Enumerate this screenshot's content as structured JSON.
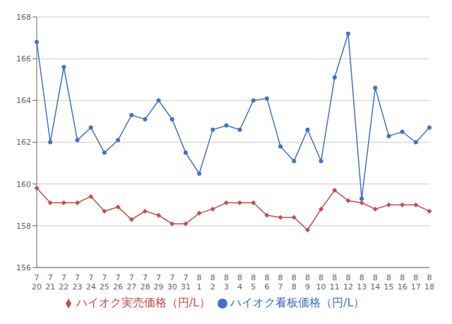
{
  "chart_data": {
    "type": "line",
    "categories": [
      "7\n20",
      "7\n21",
      "7\n22",
      "7\n23",
      "7\n24",
      "7\n25",
      "7\n26",
      "7\n27",
      "7\n28",
      "7\n29",
      "7\n30",
      "7\n31",
      "8\n1",
      "8\n2",
      "8\n3",
      "8\n4",
      "8\n5",
      "8\n6",
      "8\n7",
      "8\n8",
      "8\n9",
      "8\n10",
      "8\n11",
      "8\n12",
      "8\n13",
      "8\n14",
      "8\n15",
      "8\n16",
      "8\n17",
      "8\n18"
    ],
    "series": [
      {
        "name": "ハイオク看板価格（円/L）",
        "color": "#4472C4",
        "marker": "circle",
        "values": [
          166.8,
          162.0,
          165.6,
          162.1,
          162.7,
          161.5,
          162.1,
          163.3,
          163.1,
          164.0,
          163.1,
          161.5,
          160.5,
          162.6,
          162.8,
          162.6,
          164.0,
          164.1,
          161.8,
          161.1,
          162.6,
          161.1,
          165.1,
          167.2,
          159.3,
          164.6,
          162.3,
          162.5,
          162.0,
          162.7
        ]
      },
      {
        "name": "ハイオク実売価格（円/L）",
        "color": "#C0504D",
        "marker": "diamond",
        "values": [
          159.8,
          159.1,
          159.1,
          159.1,
          159.4,
          158.7,
          158.9,
          158.3,
          158.7,
          158.5,
          158.1,
          158.1,
          158.6,
          158.8,
          159.1,
          159.1,
          159.1,
          158.5,
          158.4,
          158.4,
          157.8,
          158.8,
          159.7,
          159.2,
          159.1,
          158.8,
          159.0,
          159.0,
          159.0,
          158.7
        ]
      }
    ],
    "ylim": [
      156,
      168
    ],
    "yticks": [
      156,
      158,
      160,
      162,
      164,
      166,
      168
    ],
    "grid": true,
    "legend": "bottom"
  }
}
